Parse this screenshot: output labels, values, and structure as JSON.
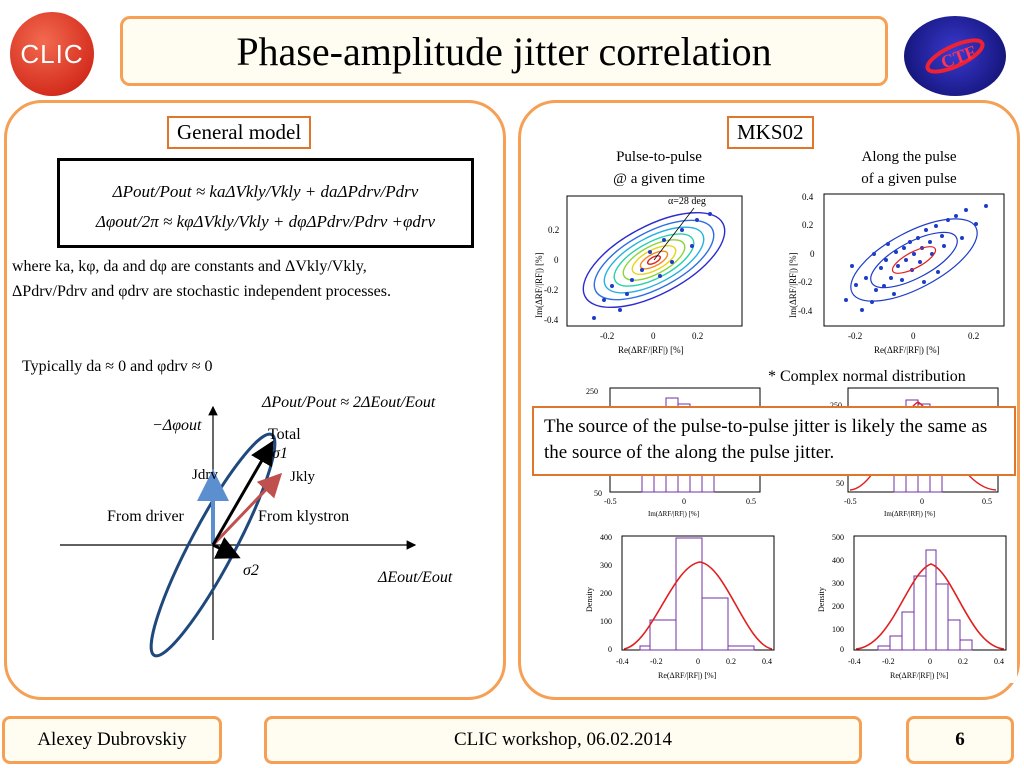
{
  "header": {
    "title": "Phase-amplitude jitter correlation",
    "logo_left_text": "CLIC",
    "logo_right_text": "CTF3"
  },
  "left": {
    "label": "General model",
    "eq1": "ΔPout/Pout ≈ kaΔVkly/Vkly + daΔPdrv/Pdrv",
    "eq2": "Δφout/2π ≈ kφΔVkly/Vkly + dφΔPdrv/Pdrv +φdrv",
    "where_line1": "where ka, kφ, da and dφ are constants and ΔVkly/Vkly,",
    "where_line2": "ΔPdrv/Pdrv and φdrv are stochastic independent processes.",
    "typically": "Typically da ≈ 0 and φdrv ≈ 0",
    "relation": "ΔPout/Pout ≈ 2ΔEout/Eout",
    "diagram": {
      "y_axis": "−Δφout",
      "x_axis": "ΔEout/Eout",
      "total": "Total",
      "sigma1": "σ1",
      "sigma2": "σ2",
      "jdrv": "Jdrv",
      "jkly": "Jkly",
      "from_driver": "From driver",
      "from_klystron": "From klystron"
    }
  },
  "right": {
    "label": "MKS02",
    "caption_left_line1": "Pulse-to-pulse",
    "caption_left_line2": "@ a given time",
    "caption_right_line1": "Along the pulse",
    "caption_right_line2": "of a given pulse",
    "angle_label": "α=28 deg",
    "note": "* Complex normal distribution",
    "source_text": "The source of the pulse-to-pulse jitter is likely the same as the source of the along the pulse jitter.",
    "scatter_xlabel": "Re(ΔRF/|RF|) [%]",
    "scatter_ylabel": "Im(ΔRF/|RF|) [%]",
    "hist_xlabel_im": "Im(ΔRF/|RF|) [%]",
    "hist_xlabel_re": "Re(ΔRF/|RF|) [%]",
    "hist_ylabel": "Density"
  },
  "footer": {
    "author": "Alexey Dubrovskiy",
    "event": "CLIC workshop, 06.02.2014",
    "page": "6"
  }
}
